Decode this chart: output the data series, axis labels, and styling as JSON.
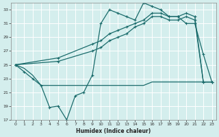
{
  "xlabel": "Humidex (Indice chaleur)",
  "bg_color": "#d4eeed",
  "grid_color": "#ffffff",
  "line_color": "#1a6b6b",
  "xlim": [
    -0.5,
    23.5
  ],
  "ylim": [
    17,
    34
  ],
  "yticks": [
    17,
    19,
    21,
    23,
    25,
    27,
    29,
    31,
    33
  ],
  "xticks": [
    0,
    1,
    2,
    3,
    4,
    5,
    6,
    7,
    8,
    9,
    10,
    11,
    12,
    13,
    14,
    15,
    16,
    17,
    18,
    19,
    20,
    21,
    22,
    23
  ],
  "jagged_x": [
    0,
    1,
    2,
    3,
    4,
    5,
    6,
    7,
    8,
    9,
    10,
    11,
    12,
    13,
    14,
    15,
    16,
    17,
    18,
    19,
    20,
    21,
    22,
    23
  ],
  "jagged_y": [
    25.0,
    24.0,
    23.0,
    22.0,
    18.8,
    19.0,
    17.0,
    20.5,
    21.0,
    23.5,
    31.0,
    33.0,
    32.5,
    32.0,
    31.5,
    34.0,
    33.5,
    33.0,
    32.0,
    32.0,
    31.0,
    31.0,
    26.5,
    22.5
  ],
  "flat_x": [
    0,
    1,
    2,
    3,
    4,
    5,
    6,
    7,
    8,
    9,
    10,
    11,
    12,
    13,
    14,
    15,
    16,
    17,
    18,
    19,
    20,
    21,
    22,
    23
  ],
  "flat_y": [
    25.0,
    24.5,
    23.5,
    22.0,
    22.0,
    22.0,
    22.0,
    22.0,
    22.0,
    22.0,
    22.0,
    22.0,
    22.0,
    22.0,
    22.0,
    22.0,
    22.5,
    22.5,
    22.5,
    22.5,
    22.5,
    22.5,
    22.5,
    22.5
  ],
  "diag1_x": [
    0,
    5,
    9,
    10,
    11,
    12,
    13,
    14,
    15,
    16,
    17,
    18,
    19,
    20,
    21,
    22,
    23
  ],
  "diag1_y": [
    25.0,
    26.0,
    28.0,
    28.5,
    29.5,
    30.0,
    30.5,
    31.0,
    31.5,
    32.5,
    32.5,
    32.0,
    32.0,
    32.5,
    32.0,
    22.5,
    22.5
  ],
  "diag2_x": [
    0,
    5,
    9,
    10,
    11,
    12,
    13,
    14,
    15,
    16,
    17,
    18,
    19,
    20,
    21,
    22,
    23
  ],
  "diag2_y": [
    25.0,
    25.5,
    27.0,
    27.5,
    28.5,
    29.0,
    29.5,
    30.5,
    31.0,
    32.0,
    32.0,
    31.5,
    31.5,
    32.0,
    31.5,
    22.5,
    22.5
  ]
}
